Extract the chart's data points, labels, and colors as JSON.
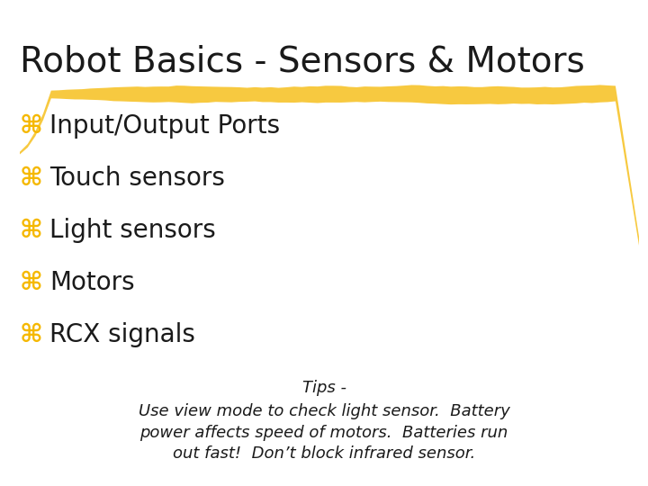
{
  "title": "Robot Basics - Sensors & Motors",
  "title_fontsize": 28,
  "title_color": "#1a1a1a",
  "bullet_symbol": "⌘",
  "bullet_color": "#F5B800",
  "bullet_fontsize": 20,
  "bullet_items": [
    "Input/Output Ports",
    "Touch sensors",
    "Light sensors",
    "Motors",
    "RCX signals"
  ],
  "bullet_text_color": "#1a1a1a",
  "tips_label": "Tips -",
  "tips_text": "Use view mode to check light sensor.  Battery\npower affects speed of motors.  Batteries run\nout fast!  Don’t block infrared sensor.",
  "tips_fontsize": 13,
  "tips_color": "#1a1a1a",
  "highlight_color": "#F5B800",
  "background_color": "#ffffff",
  "highlight_alpha": 0.75
}
